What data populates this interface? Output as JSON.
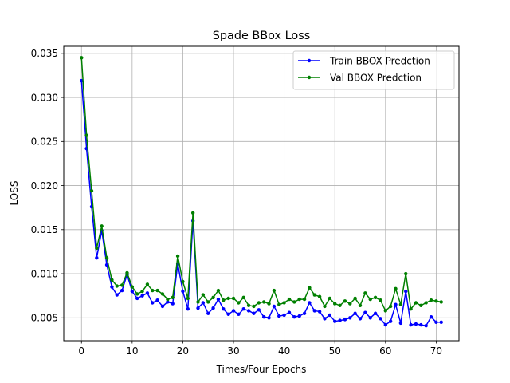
{
  "chart_data": {
    "type": "line",
    "title": "Spade BBox Loss",
    "xlabel": "Times/Four Epochs",
    "ylabel": "LOSS",
    "xlim": [
      -3.5,
      74.5
    ],
    "ylim": [
      0.0024,
      0.0358
    ],
    "xticks": [
      0,
      10,
      20,
      30,
      40,
      50,
      60,
      70
    ],
    "xtick_labels": [
      "0",
      "10",
      "20",
      "30",
      "40",
      "50",
      "60",
      "70"
    ],
    "yticks": [
      0.005,
      0.01,
      0.015,
      0.02,
      0.025,
      0.03,
      0.035
    ],
    "ytick_labels": [
      "0.005",
      "0.010",
      "0.015",
      "0.020",
      "0.025",
      "0.030",
      "0.035"
    ],
    "grid": true,
    "legend_position": "top-right",
    "series": [
      {
        "name": "Train BBOX Predction",
        "color": "#0000ff",
        "x": [
          0,
          1,
          2,
          3,
          4,
          5,
          6,
          7,
          8,
          9,
          10,
          11,
          12,
          13,
          14,
          15,
          16,
          17,
          18,
          19,
          20,
          21,
          22,
          23,
          24,
          25,
          26,
          27,
          28,
          29,
          30,
          31,
          32,
          33,
          34,
          35,
          36,
          37,
          38,
          39,
          40,
          41,
          42,
          43,
          44,
          45,
          46,
          47,
          48,
          49,
          50,
          51,
          52,
          53,
          54,
          55,
          56,
          57,
          58,
          59,
          60,
          61,
          62,
          63,
          64,
          65,
          66,
          67,
          68,
          69,
          70,
          71
        ],
        "values": [
          0.0319,
          0.0242,
          0.0176,
          0.0118,
          0.0149,
          0.011,
          0.0085,
          0.0076,
          0.0081,
          0.0099,
          0.008,
          0.0072,
          0.0075,
          0.0078,
          0.0067,
          0.007,
          0.0063,
          0.0068,
          0.0066,
          0.0111,
          0.008,
          0.006,
          0.016,
          0.0061,
          0.0067,
          0.0055,
          0.0061,
          0.0071,
          0.006,
          0.0054,
          0.0058,
          0.0054,
          0.006,
          0.0058,
          0.0055,
          0.0059,
          0.0051,
          0.005,
          0.0063,
          0.0052,
          0.0053,
          0.0056,
          0.0051,
          0.0052,
          0.0055,
          0.0067,
          0.0058,
          0.0057,
          0.0049,
          0.0053,
          0.0046,
          0.0047,
          0.0048,
          0.005,
          0.0055,
          0.0049,
          0.0056,
          0.005,
          0.0055,
          0.0049,
          0.0042,
          0.0046,
          0.0065,
          0.0044,
          0.008,
          0.0042,
          0.0043,
          0.0042,
          0.0041,
          0.0051,
          0.0045,
          0.0045
        ]
      },
      {
        "name": "Val BBOX Predction",
        "color": "#008000",
        "x": [
          0,
          1,
          2,
          3,
          4,
          5,
          6,
          7,
          8,
          9,
          10,
          11,
          12,
          13,
          14,
          15,
          16,
          17,
          18,
          19,
          20,
          21,
          22,
          23,
          24,
          25,
          26,
          27,
          28,
          29,
          30,
          31,
          32,
          33,
          34,
          35,
          36,
          37,
          38,
          39,
          40,
          41,
          42,
          43,
          44,
          45,
          46,
          47,
          48,
          49,
          50,
          51,
          52,
          53,
          54,
          55,
          56,
          57,
          58,
          59,
          60,
          61,
          62,
          63,
          64,
          65,
          66,
          67,
          68,
          69,
          70,
          71
        ],
        "values": [
          0.0345,
          0.0257,
          0.0194,
          0.0129,
          0.0154,
          0.0118,
          0.0093,
          0.0086,
          0.0087,
          0.0101,
          0.0085,
          0.0077,
          0.008,
          0.0088,
          0.0081,
          0.0081,
          0.0077,
          0.0071,
          0.0073,
          0.012,
          0.0091,
          0.0072,
          0.0169,
          0.0068,
          0.0076,
          0.0068,
          0.0073,
          0.0081,
          0.007,
          0.0072,
          0.0072,
          0.0067,
          0.0073,
          0.0064,
          0.0063,
          0.0067,
          0.0068,
          0.0066,
          0.0081,
          0.0065,
          0.0067,
          0.0071,
          0.0068,
          0.0071,
          0.0071,
          0.0084,
          0.0076,
          0.0074,
          0.0063,
          0.0072,
          0.0066,
          0.0064,
          0.0069,
          0.0066,
          0.0072,
          0.0064,
          0.0078,
          0.0071,
          0.0073,
          0.007,
          0.0058,
          0.0063,
          0.0083,
          0.0065,
          0.01,
          0.006,
          0.0067,
          0.0064,
          0.0067,
          0.007,
          0.0069,
          0.0068
        ]
      }
    ]
  }
}
